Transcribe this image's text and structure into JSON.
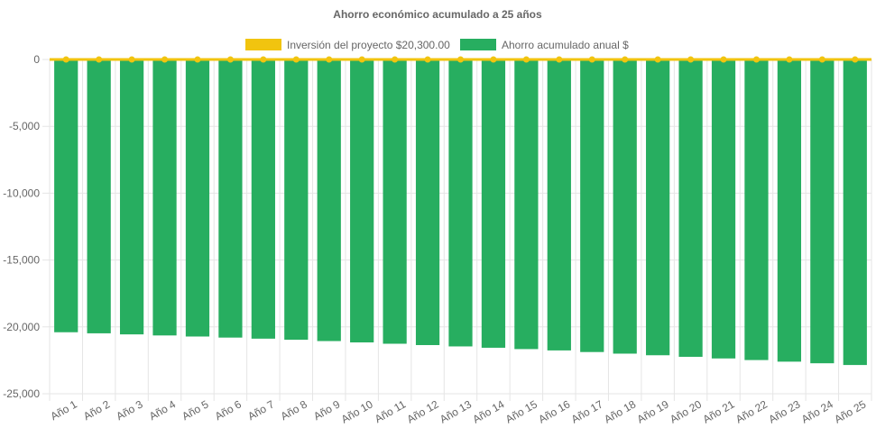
{
  "chart_data": {
    "type": "bar",
    "title": "Ahorro económico acumulado a 25 años",
    "legend_position": "top-center",
    "categories": [
      "Año 1",
      "Año 2",
      "Año 3",
      "Año 4",
      "Año 5",
      "Año 6",
      "Año 7",
      "Año 8",
      "Año 9",
      "Año 10",
      "Año 11",
      "Año 12",
      "Año 13",
      "Año 14",
      "Año 15",
      "Año 16",
      "Año 17",
      "Año 18",
      "Año 19",
      "Año 20",
      "Año 21",
      "Año 22",
      "Año 23",
      "Año 24",
      "Año 25"
    ],
    "series": [
      {
        "name": "Inversión del proyecto $20,300.00",
        "kind": "line",
        "color": "#f1c40f",
        "values": [
          0,
          0,
          0,
          0,
          0,
          0,
          0,
          0,
          0,
          0,
          0,
          0,
          0,
          0,
          0,
          0,
          0,
          0,
          0,
          0,
          0,
          0,
          0,
          0,
          0
        ]
      },
      {
        "name": "Ahorro acumulado anual $",
        "kind": "bar",
        "color": "#27ae60",
        "values": [
          -20400,
          -20480,
          -20560,
          -20640,
          -20720,
          -20800,
          -20880,
          -20960,
          -21060,
          -21160,
          -21260,
          -21360,
          -21460,
          -21560,
          -21660,
          -21760,
          -21880,
          -22000,
          -22120,
          -22240,
          -22360,
          -22480,
          -22600,
          -22720,
          -22850
        ]
      }
    ],
    "ylim": [
      -25000,
      0
    ],
    "yticks": [
      0,
      -5000,
      -10000,
      -15000,
      -20000,
      -25000
    ],
    "ytick_labels": [
      "0",
      "-5,000",
      "-10,000",
      "-15,000",
      "-20,000",
      "-25,000"
    ],
    "grid": true,
    "xlabel": "",
    "ylabel": ""
  }
}
